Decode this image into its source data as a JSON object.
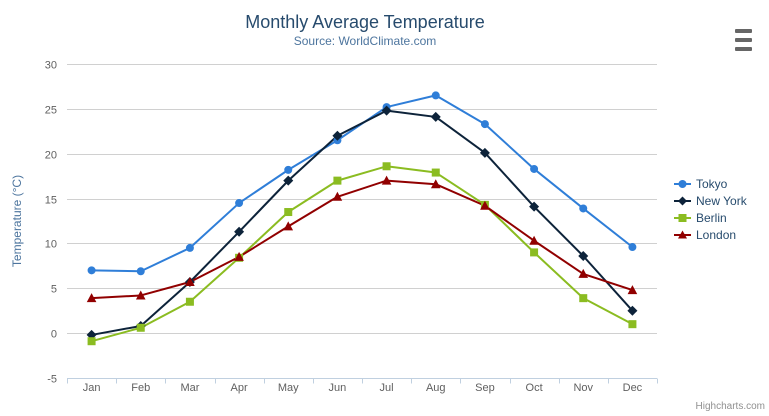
{
  "header": {
    "title": "Monthly Average Temperature",
    "subtitle": "Source: WorldClimate.com"
  },
  "credit": "Highcharts.com",
  "export_menu": {
    "icon": "hamburger-icon"
  },
  "chart_data": {
    "type": "line",
    "title": "Monthly Average Temperature",
    "subtitle": "Source: WorldClimate.com",
    "categories": [
      "Jan",
      "Feb",
      "Mar",
      "Apr",
      "May",
      "Jun",
      "Jul",
      "Aug",
      "Sep",
      "Oct",
      "Nov",
      "Dec"
    ],
    "xlabel": "",
    "ylabel": "Temperature (°C)",
    "ylim": [
      -5,
      30
    ],
    "y_tick_interval": 5,
    "y_ticks": [
      -5,
      0,
      5,
      10,
      15,
      20,
      25,
      30
    ],
    "grid": true,
    "legend_position": "right",
    "series": [
      {
        "name": "Tokyo",
        "color": "#2f7ed8",
        "marker": "circle",
        "values": [
          7.0,
          6.9,
          9.5,
          14.5,
          18.2,
          21.5,
          25.2,
          26.5,
          23.3,
          18.3,
          13.9,
          9.6
        ]
      },
      {
        "name": "New York",
        "color": "#0d233a",
        "marker": "diamond",
        "values": [
          -0.2,
          0.8,
          5.7,
          11.3,
          17.0,
          22.0,
          24.8,
          24.1,
          20.1,
          14.1,
          8.6,
          2.5
        ]
      },
      {
        "name": "Berlin",
        "color": "#8bbc21",
        "marker": "square",
        "values": [
          -0.9,
          0.6,
          3.5,
          8.4,
          13.5,
          17.0,
          18.6,
          17.9,
          14.3,
          9.0,
          3.9,
          1.0
        ]
      },
      {
        "name": "London",
        "color": "#910000",
        "marker": "triangle",
        "values": [
          3.9,
          4.2,
          5.7,
          8.5,
          11.9,
          15.2,
          17.0,
          16.6,
          14.2,
          10.3,
          6.6,
          4.8
        ]
      }
    ]
  },
  "colors": {
    "title_text": "#274b6d",
    "subtitle_text": "#4d759e",
    "axis_label": "#606060",
    "axis_title": "#4d759e",
    "grid_line": "#d0d0d0",
    "axis_line": "#c0d0e0",
    "legend_text": "#274b6d",
    "export_icon": "#666666",
    "credit_text": "#909090"
  }
}
